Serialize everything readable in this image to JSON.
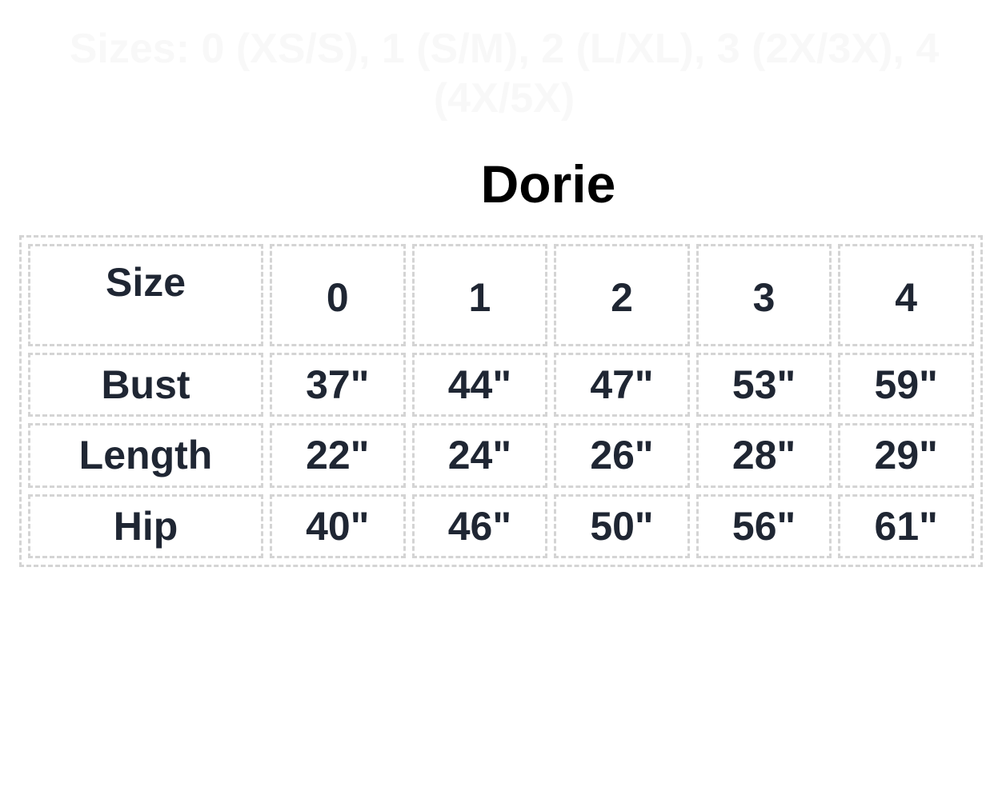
{
  "faint_heading": "Sizes: 0 (XS/S), 1 (S/M), 2 (L/XL), 3 (2X/3X), 4 (4X/5X)",
  "title": "Dorie",
  "table": {
    "header": [
      "Size",
      "0",
      "1",
      "2",
      "3",
      "4"
    ],
    "rows": [
      [
        "Bust",
        "37\"",
        "44\"",
        "47\"",
        "53\"",
        "59\""
      ],
      [
        "Length",
        "22\"",
        "24\"",
        "26\"",
        "28\"",
        "29\""
      ],
      [
        "Hip",
        "40\"",
        "46\"",
        "50\"",
        "56\"",
        "61\""
      ]
    ]
  }
}
